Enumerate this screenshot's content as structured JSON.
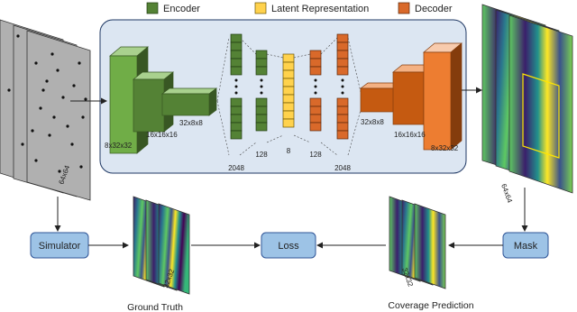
{
  "legend": [
    "Encoder",
    "Latent Representation",
    "Decoder"
  ],
  "encoder": {
    "labels": [
      "8x32x32",
      "16x16x16",
      "32x8x8"
    ]
  },
  "dense_layers": [
    "2048",
    "128",
    "8",
    "128",
    "2048"
  ],
  "decoder": {
    "labels": [
      "32x8x8",
      "16x16x16",
      "8x32x32"
    ]
  },
  "input": {
    "size": "64x64"
  },
  "output": {
    "size": "64x64"
  },
  "nodes": {
    "simulator": "Simulator",
    "loss": "Loss",
    "mask": "Mask"
  },
  "ground_truth": {
    "label": "Ground Truth",
    "size": "32x32"
  },
  "prediction": {
    "label": "Coverage Prediction",
    "size": "32x32"
  }
}
